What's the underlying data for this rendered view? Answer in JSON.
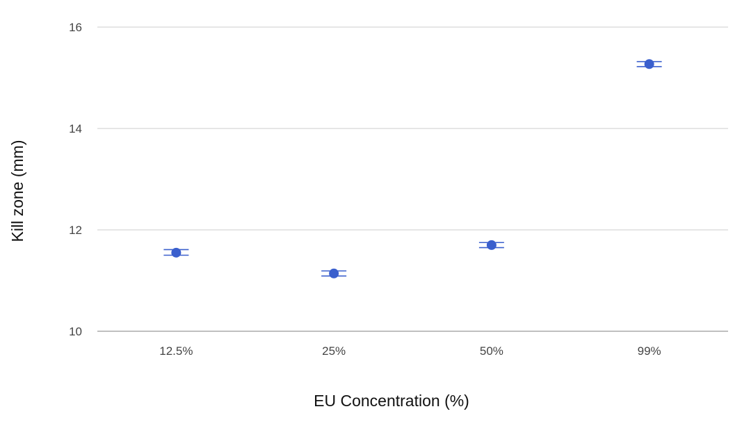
{
  "chart_data": {
    "type": "scatter",
    "title": "",
    "xlabel": "EU Concentration (%)",
    "ylabel": "Kill zone (mm)",
    "categories": [
      "12.5%",
      "25%",
      "50%",
      "99%"
    ],
    "series": [
      {
        "values": [
          11.55,
          11.14,
          11.7,
          15.27
        ],
        "error_low": [
          11.5,
          11.09,
          11.65,
          15.22
        ],
        "error_high": [
          11.61,
          11.19,
          11.75,
          15.32
        ]
      }
    ],
    "ylim": [
      10,
      16
    ],
    "yticks": [
      "10",
      "12",
      "14",
      "16"
    ],
    "grid": true,
    "legend": "none",
    "colors": {
      "point": "#3a5fcd",
      "error_bar": "#3a5fcd",
      "grid": "#cccccc",
      "baseline": "#999999"
    }
  }
}
